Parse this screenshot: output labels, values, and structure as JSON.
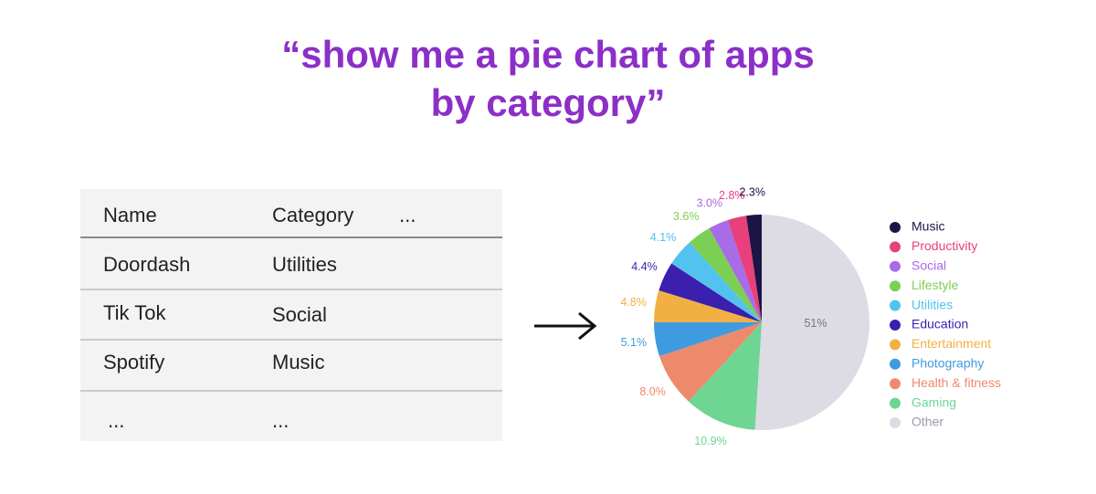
{
  "title": [
    "“show me a pie chart of apps",
    "by category”"
  ],
  "table": {
    "header": [
      "Name",
      "Category",
      "..."
    ],
    "rows": [
      [
        "Doordash",
        "Utilities"
      ],
      [
        "Tik Tok",
        "Social"
      ],
      [
        "Spotify",
        "Music"
      ],
      [
        "...",
        "..."
      ]
    ]
  },
  "chart_data": {
    "type": "pie",
    "categories": [
      "Music",
      "Productivity",
      "Social",
      "Lifestyle",
      "Utilities",
      "Education",
      "Entertainment",
      "Photography",
      "Health & fitness",
      "Gaming",
      "Other"
    ],
    "values": [
      2.3,
      2.8,
      3.0,
      3.6,
      4.1,
      4.4,
      4.8,
      5.1,
      8.0,
      10.9,
      51
    ],
    "value_labels": [
      "2.3%",
      "2.8%",
      "3.0%",
      "3.6%",
      "4.1%",
      "4.4%",
      "4.8%",
      "5.1%",
      "8.0%",
      "10.9%",
      "51%"
    ],
    "colors": [
      "#1c1444",
      "#e8407c",
      "#a86ce6",
      "#7ccf55",
      "#52c2ee",
      "#3b1fae",
      "#f2b044",
      "#3f9be0",
      "#ee8a6c",
      "#6fd592",
      "#dddbe4"
    ]
  }
}
